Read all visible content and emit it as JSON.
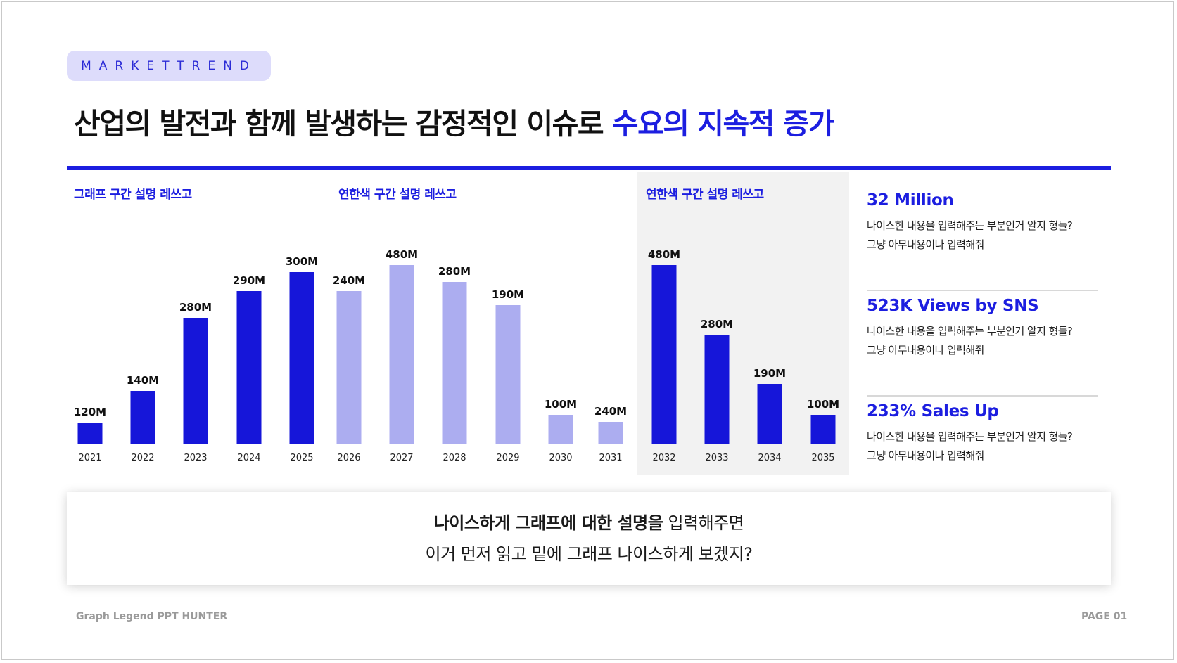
{
  "tag": "MARKETTREND",
  "title": {
    "main": "산업의 발전과 함께 발생하는 감정적인 이슈로",
    "highlight": "수요의 지속적 증가"
  },
  "section_labels": [
    "그래프 구간 설명 레쓰고",
    "연한색 구간 설명 레쓰고",
    "연한색 구간 설명 레쓰고"
  ],
  "chart_data": {
    "type": "bar",
    "categories": [
      "2021",
      "2022",
      "2023",
      "2024",
      "2025",
      "2026",
      "2027",
      "2028",
      "2029",
      "2030",
      "2031",
      "2032",
      "2033",
      "2034",
      "2035"
    ],
    "values": [
      120,
      140,
      280,
      290,
      300,
      240,
      480,
      280,
      190,
      100,
      240,
      480,
      280,
      190,
      100
    ],
    "value_labels": [
      "120M",
      "140M",
      "280M",
      "290M",
      "300M",
      "240M",
      "480M",
      "280M",
      "190M",
      "100M",
      "240M",
      "480M",
      "280M",
      "190M",
      "100M"
    ],
    "bar_heights": [
      31,
      76,
      180,
      218,
      245,
      218,
      255,
      231,
      198,
      42,
      32,
      255,
      156,
      86,
      42
    ],
    "series_group": [
      "dark",
      "dark",
      "dark",
      "dark",
      "dark",
      "light",
      "light",
      "light",
      "light",
      "light",
      "light",
      "dark",
      "dark",
      "dark",
      "dark"
    ],
    "unit": "M",
    "ylim": [
      0,
      480
    ],
    "grid": false,
    "colors": {
      "dark": "#1616d9",
      "light": "#acadf0"
    }
  },
  "stats": [
    {
      "title": "32 Million",
      "lines": [
        "나이스한 내용을 입력해주는 부분인거 알지 형들?",
        "그냥 아무내용이나 입력해줘"
      ]
    },
    {
      "title": "523K Views by SNS",
      "lines": [
        "나이스한 내용을 입력해주는 부분인거 알지 형들?",
        "그냥 아무내용이나 입력해줘"
      ]
    },
    {
      "title": "233% Sales Up",
      "lines": [
        "나이스한 내용을 입력해주는 부분인거 알지 형들?",
        "그냥 아무내용이나 입력해줘"
      ]
    }
  ],
  "note": {
    "line1_bold": "나이스하게 그래프에 대한 설명을",
    "line1_rest": " 입력해주면",
    "line2": "이거 먼저 읽고 밑에 그래프 나이스하게 보겠지?"
  },
  "footer": {
    "left": "Graph Legend PPT HUNTER",
    "right": "PAGE 01"
  }
}
